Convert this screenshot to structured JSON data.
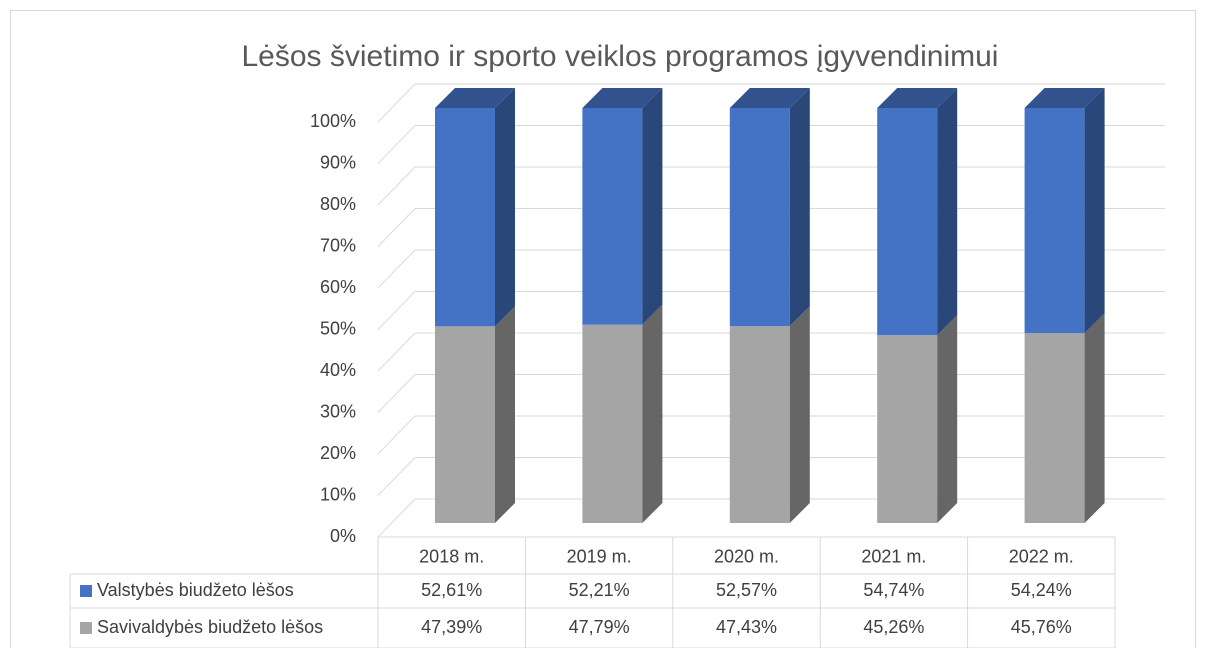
{
  "chart_data": {
    "type": "bar",
    "stacked": true,
    "title": "Lėšos švietimo ir sporto veiklos programos įgyvendinimui",
    "categories": [
      "2018 m.",
      "2019 m.",
      "2020 m.",
      "2021 m.",
      "2022 m."
    ],
    "series": [
      {
        "name": "Valstybės biudžeto lėšos",
        "color": "#4472c4",
        "values": [
          52.61,
          52.21,
          52.57,
          54.74,
          54.24
        ],
        "value_labels": [
          "52,61%",
          "52,21%",
          "52,57%",
          "54,74%",
          "54,24%"
        ]
      },
      {
        "name": "Savivaldybės biudžeto lėšos",
        "color": "#a5a5a5",
        "values": [
          47.39,
          47.79,
          47.43,
          45.26,
          45.76
        ],
        "value_labels": [
          "47,39%",
          "47,79%",
          "47,43%",
          "45,26%",
          "45,76%"
        ]
      }
    ],
    "ylim": [
      0,
      100
    ],
    "yticks": [
      {
        "value": 0,
        "label": "0%"
      },
      {
        "value": 10,
        "label": "10%"
      },
      {
        "value": 20,
        "label": "20%"
      },
      {
        "value": 30,
        "label": "30%"
      },
      {
        "value": 40,
        "label": "40%"
      },
      {
        "value": 50,
        "label": "50%"
      },
      {
        "value": 60,
        "label": "60%"
      },
      {
        "value": 70,
        "label": "70%"
      },
      {
        "value": 80,
        "label": "80%"
      },
      {
        "value": 90,
        "label": "90%"
      },
      {
        "value": 100,
        "label": "100%"
      }
    ],
    "grid": true
  }
}
